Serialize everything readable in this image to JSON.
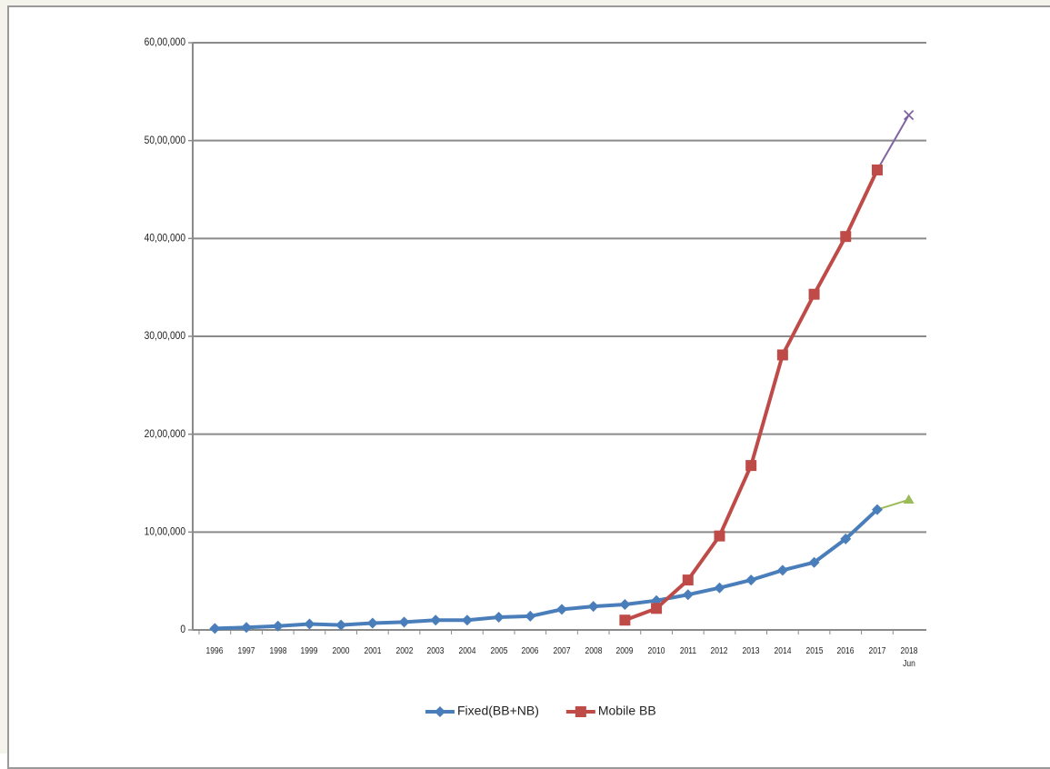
{
  "chart_data": {
    "type": "line",
    "categories": [
      "1996",
      "1997",
      "1998",
      "1999",
      "2000",
      "2001",
      "2002",
      "2003",
      "2004",
      "2005",
      "2006",
      "2007",
      "2008",
      "2009",
      "2010",
      "2011",
      "2012",
      "2013",
      "2014",
      "2015",
      "2016",
      "2017",
      "2018 Jun"
    ],
    "series": [
      {
        "name": "Fixed(BB+NB)",
        "color": "#4a7ebb",
        "marker": "diamond",
        "last_segment_color": "#9bbb59",
        "last_marker": "triangle",
        "values": [
          15000,
          25000,
          40000,
          60000,
          50000,
          70000,
          80000,
          100000,
          100000,
          130000,
          140000,
          210000,
          240000,
          260000,
          300000,
          360000,
          430000,
          510000,
          610000,
          690000,
          930000,
          1230000,
          1330000
        ]
      },
      {
        "name": "Mobile BB",
        "color": "#be4b48",
        "marker": "square",
        "last_segment_color": "#8064a2",
        "last_marker": "cross",
        "values": [
          null,
          null,
          null,
          null,
          null,
          null,
          null,
          null,
          null,
          null,
          null,
          null,
          null,
          100000,
          220000,
          510000,
          960000,
          1680000,
          2810000,
          3430000,
          4020000,
          4700000,
          5260000
        ]
      }
    ],
    "ylim": [
      0,
      6000000
    ],
    "yticks": [
      0,
      {
        "value": 1000000,
        "label": "10,00,000"
      },
      {
        "value": 2000000,
        "label": "20,00,000"
      },
      {
        "value": 3000000,
        "label": "30,00,000"
      },
      {
        "value": 4000000,
        "label": "40,00,000"
      },
      {
        "value": 5000000,
        "label": "50,00,000"
      },
      {
        "value": 6000000,
        "label": "60,00,000"
      }
    ],
    "grid": true,
    "legend": "bottom"
  }
}
